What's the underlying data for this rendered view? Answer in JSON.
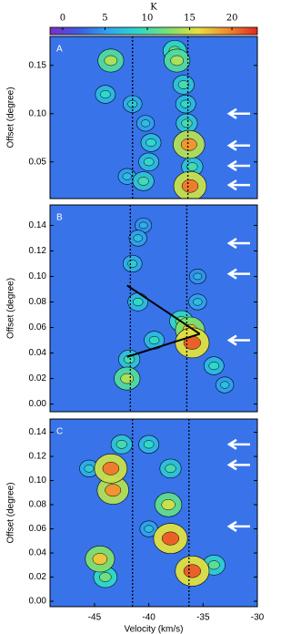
{
  "colorbar": {
    "label": "K",
    "clim": [
      -1.5,
      23
    ],
    "ticks": [
      0,
      5,
      10,
      15,
      20
    ],
    "colormap": [
      "#7a2fc8",
      "#3c5ee6",
      "#2fa8f0",
      "#30d8c8",
      "#7be070",
      "#e8e040",
      "#f08a30",
      "#e02a20"
    ]
  },
  "background_value": 3,
  "chart_data": [
    {
      "type": "heatmap",
      "panel_label": "A",
      "ylabel": "Offset (degree)",
      "xlim": [
        -49.1,
        -30
      ],
      "ylim": [
        0.012,
        0.18
      ],
      "yticks": [
        {
          "value": 0.05,
          "label": "0.05"
        },
        {
          "value": 0.1,
          "label": "0.10"
        },
        {
          "value": 0.15,
          "label": "0.15"
        }
      ],
      "vlines": [
        -41.5,
        -36.4
      ],
      "arrows": [
        0.1,
        0.067,
        0.046,
        0.026
      ],
      "features": {
        "x": [
          -36.2,
          -36,
          -36.3,
          -36.5,
          -36.6,
          -36.8,
          -37.4,
          -37.6,
          -40,
          -39.8,
          -40.5,
          -40.3,
          -43.5,
          -44,
          -41.5,
          -42
        ],
        "y": [
          0.025,
          0.045,
          0.068,
          0.09,
          0.11,
          0.13,
          0.155,
          0.165,
          0.05,
          0.07,
          0.03,
          0.09,
          0.155,
          0.12,
          0.11,
          0.035
        ],
        "values": [
          20,
          10,
          19,
          10,
          9,
          10,
          14,
          12,
          9,
          9,
          10,
          7,
          14,
          9,
          8,
          7
        ]
      }
    },
    {
      "type": "heatmap",
      "panel_label": "B",
      "ylabel": "Offset (degree)",
      "xlim": [
        -49.1,
        -30
      ],
      "ylim": [
        -0.006,
        0.156
      ],
      "yticks": [
        {
          "value": 0,
          "label": "0.00"
        },
        0.02,
        0.04,
        0.06,
        0.08,
        {
          "value": 0.1,
          "label": "0.10"
        },
        0.12,
        0.14
      ],
      "vlines": [
        -41.7,
        -36.5
      ],
      "arrows": [
        0.126,
        0.102,
        0.05
      ],
      "lines": [
        {
          "x": [
            -42,
            -35.3
          ],
          "y": [
            0.093,
            0.055
          ]
        },
        {
          "x": [
            -42,
            -35.3
          ],
          "y": [
            0.037,
            0.055
          ]
        }
      ],
      "features": {
        "x": [
          -36,
          -36.2,
          -37,
          -39.5,
          -41,
          -41.5,
          -41,
          -40.5,
          -42,
          -41.8,
          -34,
          -33,
          -35.5,
          -35.5
        ],
        "y": [
          0.048,
          0.058,
          0.065,
          0.05,
          0.08,
          0.11,
          0.13,
          0.14,
          0.02,
          0.035,
          0.03,
          0.015,
          0.08,
          0.1
        ],
        "values": [
          21,
          17,
          12,
          9,
          9,
          8,
          7,
          6,
          14,
          10,
          9,
          7,
          7,
          6
        ]
      }
    },
    {
      "type": "heatmap",
      "panel_label": "C",
      "ylabel": "Offset (degree)",
      "xlabel": "Velocity (km/s)",
      "xlim": [
        -49.1,
        -30
      ],
      "ylim": [
        -0.0045,
        0.151
      ],
      "xticks": [
        -45,
        -40,
        -35,
        -30
      ],
      "yticks": [
        {
          "value": 0,
          "label": "0.00"
        },
        0.02,
        0.04,
        0.06,
        0.08,
        {
          "value": 0.1,
          "label": "0.10"
        },
        0.12,
        0.14
      ],
      "vlines": [
        -41.5,
        -36.3
      ],
      "arrows": [
        0.13,
        0.113,
        0.062
      ],
      "features": {
        "x": [
          -43.5,
          -43.3,
          -42.5,
          -40,
          -38,
          -38.2,
          -38,
          -36,
          -34,
          -44.5,
          -44,
          -45.5,
          -40
        ],
        "y": [
          0.11,
          0.092,
          0.13,
          0.13,
          0.11,
          0.08,
          0.052,
          0.025,
          0.03,
          0.035,
          0.02,
          0.11,
          0.06
        ],
        "values": [
          20,
          19,
          10,
          9,
          10,
          15,
          21,
          21,
          11,
          17,
          12,
          8,
          7
        ]
      }
    }
  ]
}
